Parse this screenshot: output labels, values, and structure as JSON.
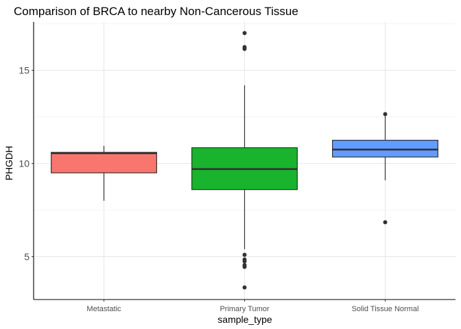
{
  "chart_data": {
    "type": "box",
    "title": "Comparison of BRCA to nearby Non-Cancerous Tissue",
    "xlabel": "sample_type",
    "ylabel": "PHGDH",
    "ylim": [
      2.7,
      17.6
    ],
    "yticks": [
      5,
      10,
      15
    ],
    "grid": true,
    "legend": "none",
    "categories": [
      "Metastatic",
      "Primary Tumor",
      "Solid Tissue Normal"
    ],
    "boxes": [
      {
        "name": "Metastatic",
        "color": "#F8766D",
        "min": 8.0,
        "q1": 9.5,
        "median": 10.55,
        "q3": 10.6,
        "max": 10.95,
        "outliers": []
      },
      {
        "name": "Primary Tumor",
        "color": "#19B32D",
        "min": 5.4,
        "q1": 8.6,
        "median": 9.7,
        "q3": 10.85,
        "max": 14.2,
        "outliers": [
          17.0,
          16.25,
          16.15,
          5.1,
          4.85,
          4.75,
          4.55,
          4.45,
          3.35
        ]
      },
      {
        "name": "Solid Tissue Normal",
        "color": "#619CFF",
        "min": 9.1,
        "q1": 10.35,
        "median": 10.75,
        "q3": 11.25,
        "max": 12.65,
        "outliers": [
          12.65,
          6.85
        ]
      }
    ]
  }
}
